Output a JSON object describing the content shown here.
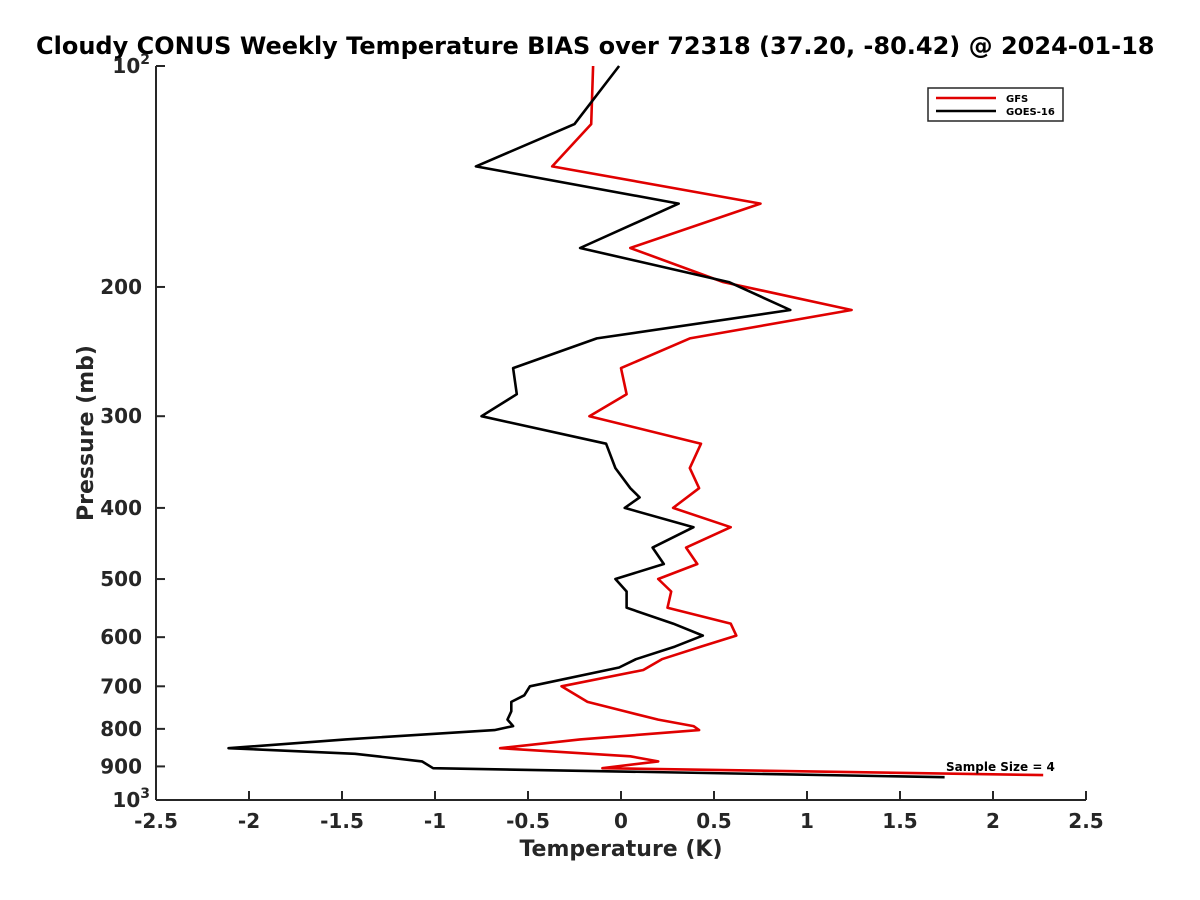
{
  "chart_data": {
    "type": "line",
    "title": "Cloudy CONUS Weekly Temperature BIAS over 72318 (37.20, -80.42) @ 2024-01-18",
    "xlabel": "Temperature (K)",
    "ylabel": "Pressure (mb)",
    "xlim": [
      -2.5,
      2.5
    ],
    "ylim": [
      100,
      1000
    ],
    "yscale": "log",
    "y_reversed": true,
    "grid": false,
    "legend_position": "top-right",
    "x_ticks": [
      {
        "value": -2.5,
        "label": "-2.5"
      },
      {
        "value": -2,
        "label": "-2"
      },
      {
        "value": -1.5,
        "label": "-1.5"
      },
      {
        "value": -1,
        "label": "-1"
      },
      {
        "value": -0.5,
        "label": "-0.5"
      },
      {
        "value": 0,
        "label": "0"
      },
      {
        "value": 0.5,
        "label": "0.5"
      },
      {
        "value": 1,
        "label": "1"
      },
      {
        "value": 1.5,
        "label": "1.5"
      },
      {
        "value": 2,
        "label": "2"
      },
      {
        "value": 2.5,
        "label": "2.5"
      }
    ],
    "y_ticks": [
      {
        "value": 100,
        "label": "10",
        "sup": "2"
      },
      {
        "value": 200,
        "label": "200"
      },
      {
        "value": 300,
        "label": "300"
      },
      {
        "value": 400,
        "label": "400"
      },
      {
        "value": 500,
        "label": "500"
      },
      {
        "value": 600,
        "label": "600"
      },
      {
        "value": 700,
        "label": "700"
      },
      {
        "value": 800,
        "label": "800"
      },
      {
        "value": 900,
        "label": "900"
      },
      {
        "value": 1000,
        "label": "10",
        "sup": "3"
      }
    ],
    "series": [
      {
        "name": "GFS",
        "color": "#e00000",
        "points": [
          {
            "x": -0.15,
            "y": 100
          },
          {
            "x": -0.16,
            "y": 120
          },
          {
            "x": -0.37,
            "y": 137
          },
          {
            "x": 0.75,
            "y": 154
          },
          {
            "x": 0.05,
            "y": 177
          },
          {
            "x": 0.55,
            "y": 197
          },
          {
            "x": 1.24,
            "y": 215
          },
          {
            "x": 0.37,
            "y": 235
          },
          {
            "x": 0.0,
            "y": 258
          },
          {
            "x": 0.03,
            "y": 280
          },
          {
            "x": -0.17,
            "y": 300
          },
          {
            "x": 0.43,
            "y": 327
          },
          {
            "x": 0.37,
            "y": 353
          },
          {
            "x": 0.42,
            "y": 376
          },
          {
            "x": 0.28,
            "y": 400
          },
          {
            "x": 0.59,
            "y": 425
          },
          {
            "x": 0.35,
            "y": 453
          },
          {
            "x": 0.41,
            "y": 477
          },
          {
            "x": 0.2,
            "y": 500
          },
          {
            "x": 0.27,
            "y": 520
          },
          {
            "x": 0.25,
            "y": 547
          },
          {
            "x": 0.59,
            "y": 575
          },
          {
            "x": 0.62,
            "y": 597
          },
          {
            "x": 0.43,
            "y": 618
          },
          {
            "x": 0.22,
            "y": 643
          },
          {
            "x": 0.12,
            "y": 665
          },
          {
            "x": -0.32,
            "y": 700
          },
          {
            "x": -0.18,
            "y": 735
          },
          {
            "x": 0.02,
            "y": 757
          },
          {
            "x": 0.2,
            "y": 777
          },
          {
            "x": 0.39,
            "y": 793
          },
          {
            "x": 0.42,
            "y": 803
          },
          {
            "x": -0.22,
            "y": 827
          },
          {
            "x": -0.65,
            "y": 850
          },
          {
            "x": 0.05,
            "y": 872
          },
          {
            "x": 0.2,
            "y": 886
          },
          {
            "x": -0.1,
            "y": 905
          },
          {
            "x": 2.27,
            "y": 925
          }
        ]
      },
      {
        "name": "GOES-16",
        "color": "#000000",
        "points": [
          {
            "x": -0.01,
            "y": 100
          },
          {
            "x": -0.25,
            "y": 120
          },
          {
            "x": -0.78,
            "y": 137
          },
          {
            "x": 0.31,
            "y": 154
          },
          {
            "x": -0.22,
            "y": 177
          },
          {
            "x": 0.58,
            "y": 197
          },
          {
            "x": 0.91,
            "y": 215
          },
          {
            "x": -0.13,
            "y": 235
          },
          {
            "x": -0.58,
            "y": 258
          },
          {
            "x": -0.56,
            "y": 280
          },
          {
            "x": -0.75,
            "y": 300
          },
          {
            "x": -0.08,
            "y": 327
          },
          {
            "x": -0.03,
            "y": 353
          },
          {
            "x": 0.05,
            "y": 376
          },
          {
            "x": 0.1,
            "y": 387
          },
          {
            "x": 0.02,
            "y": 400
          },
          {
            "x": 0.39,
            "y": 425
          },
          {
            "x": 0.17,
            "y": 453
          },
          {
            "x": 0.23,
            "y": 477
          },
          {
            "x": -0.03,
            "y": 500
          },
          {
            "x": 0.03,
            "y": 520
          },
          {
            "x": 0.03,
            "y": 547
          },
          {
            "x": 0.28,
            "y": 575
          },
          {
            "x": 0.44,
            "y": 597
          },
          {
            "x": 0.29,
            "y": 618
          },
          {
            "x": 0.08,
            "y": 643
          },
          {
            "x": -0.01,
            "y": 660
          },
          {
            "x": -0.49,
            "y": 700
          },
          {
            "x": -0.52,
            "y": 720
          },
          {
            "x": -0.59,
            "y": 735
          },
          {
            "x": -0.59,
            "y": 757
          },
          {
            "x": -0.61,
            "y": 777
          },
          {
            "x": -0.58,
            "y": 793
          },
          {
            "x": -0.68,
            "y": 803
          },
          {
            "x": -1.48,
            "y": 827
          },
          {
            "x": -2.11,
            "y": 850
          },
          {
            "x": -1.43,
            "y": 865
          },
          {
            "x": -1.07,
            "y": 886
          },
          {
            "x": -1.01,
            "y": 905
          },
          {
            "x": 1.74,
            "y": 931
          }
        ]
      }
    ],
    "annotations": [
      {
        "text": "Sample Size = 4"
      }
    ]
  }
}
